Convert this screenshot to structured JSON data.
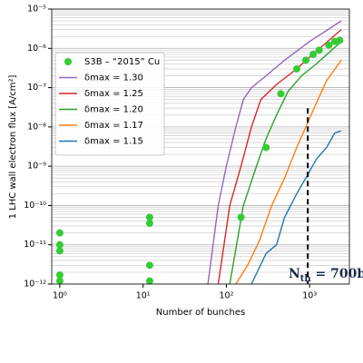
{
  "chart_data": {
    "type": "line",
    "x_label": "Number of bunches",
    "y_label": "1 LHC wall electron flux [A/cm²]",
    "xlog": true,
    "ylog": true,
    "grid": true,
    "xlim": [
      0.8,
      3000
    ],
    "ylim": [
      1e-12,
      1e-05
    ],
    "xticks": [
      {
        "value": 1,
        "label": "10⁰"
      },
      {
        "value": 10,
        "label": "10¹"
      },
      {
        "value": 100,
        "label": "10²"
      },
      {
        "value": 1000,
        "label": "10³"
      }
    ],
    "yticks": [
      {
        "value": 1e-12,
        "label": "10⁻¹²"
      },
      {
        "value": 1e-11,
        "label": "10⁻¹¹"
      },
      {
        "value": 1e-10,
        "label": "10⁻¹⁰"
      },
      {
        "value": 1e-09,
        "label": "10⁻⁹"
      },
      {
        "value": 1e-08,
        "label": "10⁻⁸"
      },
      {
        "value": 1e-07,
        "label": "10⁻⁷"
      },
      {
        "value": 1e-06,
        "label": "10⁻⁶"
      },
      {
        "value": 1e-05,
        "label": "10⁻⁵"
      }
    ],
    "legend": "upper left",
    "series": [
      {
        "name": "S3B – “2015” Cu",
        "type": "scatter",
        "color": "#33cc33",
        "x": [
          1,
          1,
          1,
          1,
          1,
          12,
          12,
          12,
          12,
          150,
          300,
          450,
          700,
          900,
          1100,
          1300,
          1700,
          2000,
          2300
        ],
        "values": [
          2e-11,
          1e-11,
          7e-12,
          1.7e-12,
          1.2e-12,
          5e-11,
          3.5e-11,
          3e-12,
          1.2e-12,
          5e-11,
          3e-09,
          7e-08,
          3e-07,
          5e-07,
          7e-07,
          9e-07,
          1.2e-06,
          1.5e-06,
          1.6e-06
        ]
      },
      {
        "name": "δmax = 1.30",
        "type": "line",
        "color": "#9467bd",
        "x": [
          60,
          80,
          100,
          130,
          160,
          200,
          300,
          500,
          1000,
          2400
        ],
        "values": [
          1e-12,
          1e-10,
          1e-09,
          1e-08,
          5e-08,
          1e-07,
          2e-07,
          5e-07,
          1.5e-06,
          5e-06
        ]
      },
      {
        "name": "δmax = 1.25",
        "type": "line",
        "color": "#d62728",
        "x": [
          80,
          110,
          150,
          200,
          260,
          400,
          700,
          1000,
          2400
        ],
        "values": [
          1e-12,
          1e-10,
          1e-09,
          1e-08,
          5e-08,
          1.2e-07,
          3e-07,
          6e-07,
          3e-06
        ]
      },
      {
        "name": "δmax = 1.20",
        "type": "line",
        "color": "#2ca02c",
        "x": [
          110,
          160,
          230,
          300,
          400,
          550,
          800,
          1200,
          2400
        ],
        "values": [
          1e-12,
          1e-10,
          1e-09,
          5e-09,
          2e-08,
          8e-08,
          2e-07,
          4e-07,
          1.5e-06
        ]
      },
      {
        "name": "δmax = 1.17",
        "type": "line",
        "color": "#ff7f0e",
        "x": [
          130,
          180,
          250,
          350,
          500,
          700,
          900,
          1200,
          1600,
          2400
        ],
        "values": [
          1e-12,
          3e-12,
          1.3e-11,
          1e-10,
          5e-10,
          3e-09,
          1e-08,
          4e-08,
          1.5e-07,
          5e-07
        ]
      },
      {
        "name": "δmax = 1.15",
        "type": "line",
        "color": "#1f77b4",
        "x": [
          200,
          300,
          400,
          500,
          700,
          900,
          1200,
          1600,
          2000,
          2400
        ],
        "values": [
          1e-12,
          6e-12,
          1e-11,
          5e-11,
          2e-10,
          5e-10,
          1.5e-09,
          3e-09,
          7e-09,
          8e-09
        ]
      }
    ],
    "threshold": {
      "x": 950,
      "ytop": 3e-08,
      "label_main": "N",
      "label_sub": "th",
      "label_rest": " = 700b"
    }
  }
}
